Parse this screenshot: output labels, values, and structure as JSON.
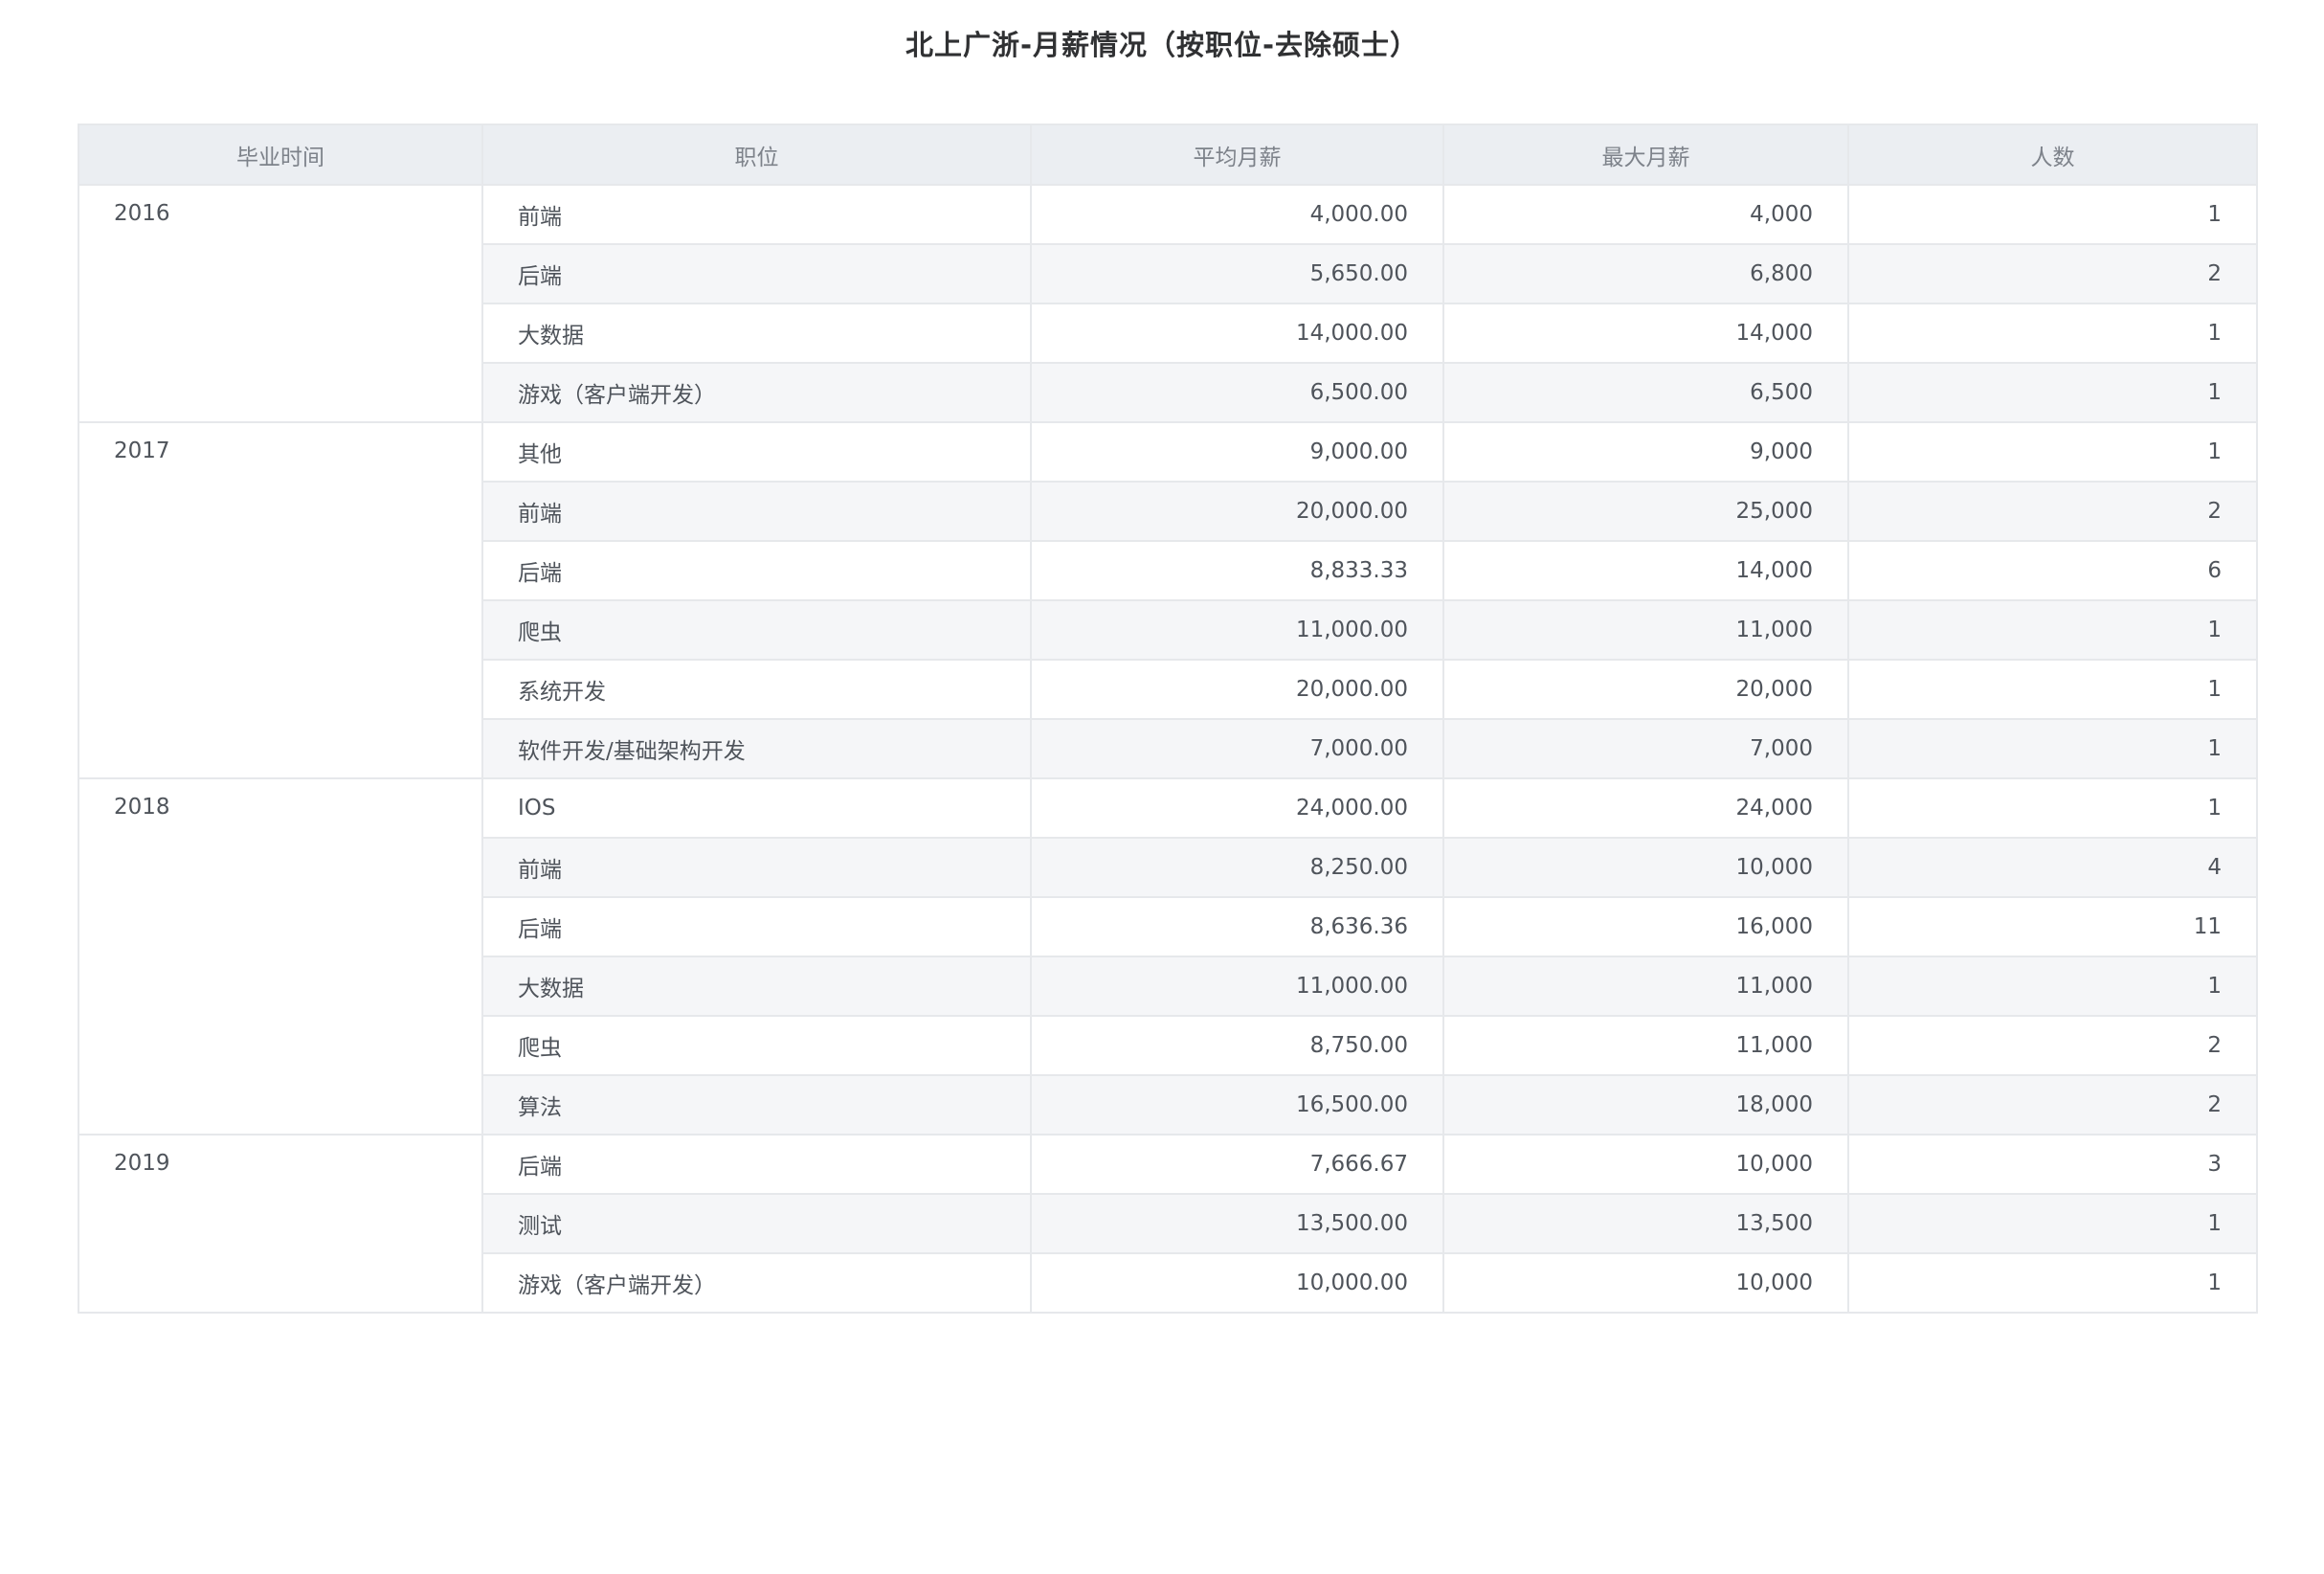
{
  "title": "北上广浙-月薪情况（按职位-去除硕士）",
  "chart_data": {
    "type": "table",
    "columns": [
      "毕业时间",
      "职位",
      "平均月薪",
      "最大月薪",
      "人数"
    ],
    "groups": [
      {
        "year": "2016",
        "rows": [
          {
            "position": "前端",
            "avg": "4,000.00",
            "max": "4,000",
            "count": "1"
          },
          {
            "position": "后端",
            "avg": "5,650.00",
            "max": "6,800",
            "count": "2"
          },
          {
            "position": "大数据",
            "avg": "14,000.00",
            "max": "14,000",
            "count": "1"
          },
          {
            "position": "游戏（客户端开发）",
            "avg": "6,500.00",
            "max": "6,500",
            "count": "1"
          }
        ]
      },
      {
        "year": "2017",
        "rows": [
          {
            "position": "其他",
            "avg": "9,000.00",
            "max": "9,000",
            "count": "1"
          },
          {
            "position": "前端",
            "avg": "20,000.00",
            "max": "25,000",
            "count": "2"
          },
          {
            "position": "后端",
            "avg": "8,833.33",
            "max": "14,000",
            "count": "6"
          },
          {
            "position": "爬虫",
            "avg": "11,000.00",
            "max": "11,000",
            "count": "1"
          },
          {
            "position": "系统开发",
            "avg": "20,000.00",
            "max": "20,000",
            "count": "1"
          },
          {
            "position": "软件开发/基础架构开发",
            "avg": "7,000.00",
            "max": "7,000",
            "count": "1"
          }
        ]
      },
      {
        "year": "2018",
        "rows": [
          {
            "position": "IOS",
            "avg": "24,000.00",
            "max": "24,000",
            "count": "1"
          },
          {
            "position": "前端",
            "avg": "8,250.00",
            "max": "10,000",
            "count": "4"
          },
          {
            "position": "后端",
            "avg": "8,636.36",
            "max": "16,000",
            "count": "11"
          },
          {
            "position": "大数据",
            "avg": "11,000.00",
            "max": "11,000",
            "count": "1"
          },
          {
            "position": "爬虫",
            "avg": "8,750.00",
            "max": "11,000",
            "count": "2"
          },
          {
            "position": "算法",
            "avg": "16,500.00",
            "max": "18,000",
            "count": "2"
          }
        ]
      },
      {
        "year": "2019",
        "rows": [
          {
            "position": "后端",
            "avg": "7,666.67",
            "max": "10,000",
            "count": "3"
          },
          {
            "position": "测试",
            "avg": "13,500.00",
            "max": "13,500",
            "count": "1"
          },
          {
            "position": "游戏（客户端开发）",
            "avg": "10,000.00",
            "max": "10,000",
            "count": "1"
          }
        ]
      }
    ]
  }
}
